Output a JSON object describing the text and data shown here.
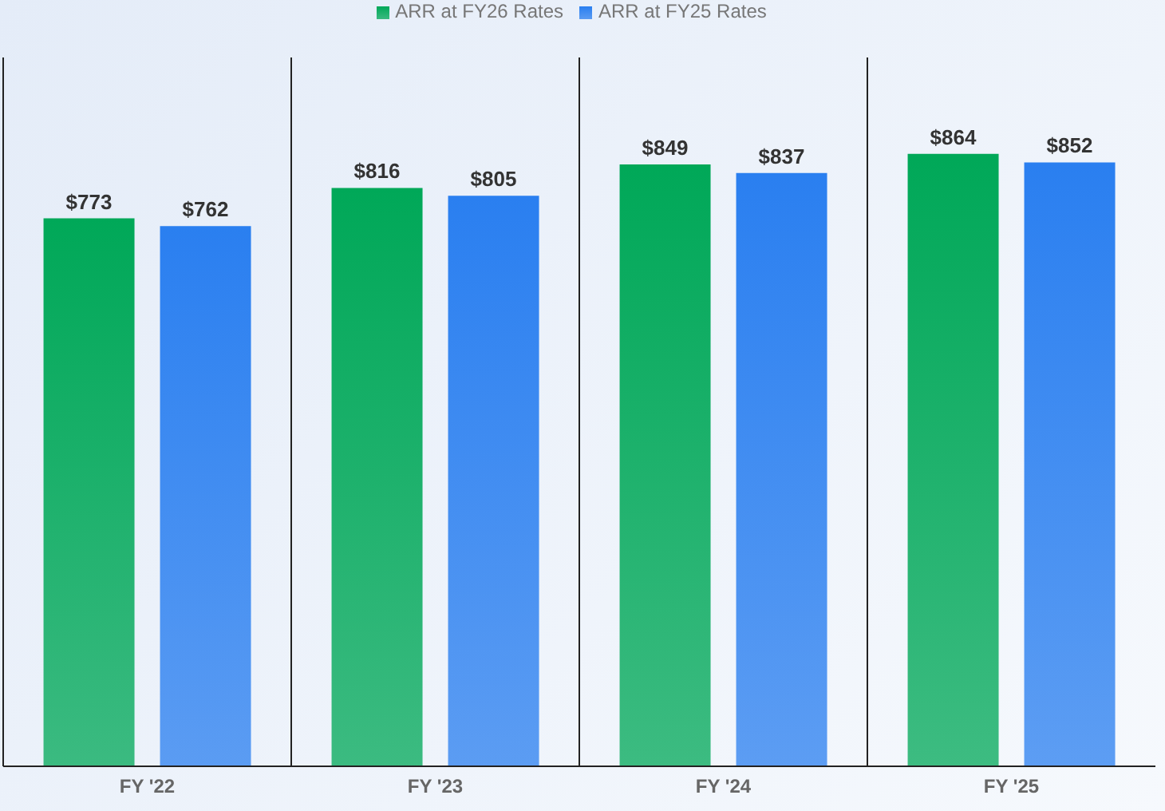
{
  "chart_data": {
    "type": "bar",
    "categories": [
      "FY '22",
      "FY '23",
      "FY '24",
      "FY '25"
    ],
    "series": [
      {
        "name": "ARR at FY26 Rates",
        "color": "#00a858",
        "values": [
          773,
          816,
          849,
          864
        ],
        "value_labels": [
          "$773",
          "$816",
          "$849",
          "$864"
        ]
      },
      {
        "name": "ARR at FY25 Rates",
        "color": "#2a7ff0",
        "values": [
          762,
          805,
          837,
          852
        ],
        "value_labels": [
          "$762",
          "$805",
          "$837",
          "$852"
        ]
      }
    ],
    "grid": "x",
    "legend": "top"
  }
}
